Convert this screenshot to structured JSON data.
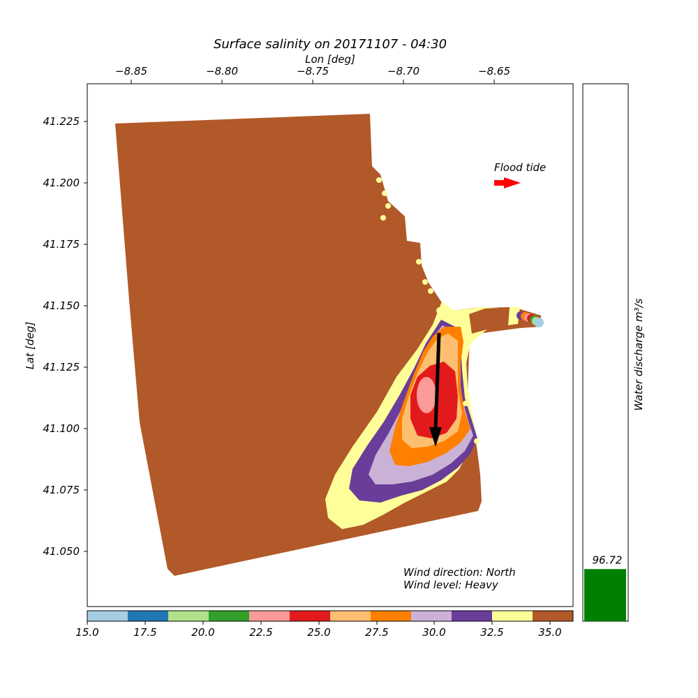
{
  "title": "Surface salinity on 20171107 - 04:30",
  "map": {
    "x_axis_label": "Lon [deg]",
    "y_axis_label": "Lat [deg]",
    "lon_ticks": [
      "−8.85",
      "−8.80",
      "−8.75",
      "−8.70",
      "−8.65"
    ],
    "lat_ticks": [
      "41.225",
      "41.200",
      "41.175",
      "41.150",
      "41.125",
      "41.100",
      "41.075",
      "41.050"
    ],
    "tide_label": "Flood tide",
    "wind_direction": "Wind direction: North",
    "wind_level": "Wind level: Heavy",
    "wind_arrow_color": "#000000",
    "tide_arrow_color": "#ff0000"
  },
  "colorbar": {
    "ticks": [
      "15.0",
      "17.5",
      "20.0",
      "22.5",
      "25.0",
      "27.5",
      "30.0",
      "32.5",
      "35.0"
    ],
    "range": [
      15.0,
      36.0
    ],
    "colors": [
      "#a6cee3",
      "#1f78b4",
      "#b2df8a",
      "#33a02c",
      "#fb9a99",
      "#e31a1c",
      "#fdbf6f",
      "#ff7f00",
      "#cab2d6",
      "#6a3d9a",
      "#ffff99",
      "#b15928"
    ]
  },
  "discharge": {
    "label": "Water discharge m³/s",
    "value": "96.72",
    "bar_fraction": 0.097,
    "bar_color": "#008000"
  }
}
